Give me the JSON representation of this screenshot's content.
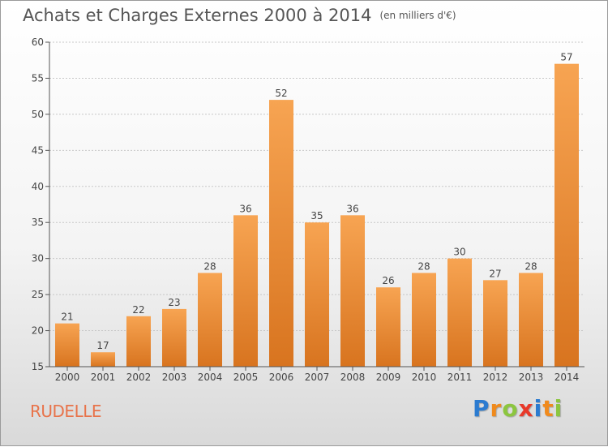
{
  "title": "Achats et Charges Externes 2000 à 2014",
  "subtitle": "(en milliers d'€)",
  "commune": "RUDELLE",
  "logo": {
    "text": "Proxiti",
    "letters": [
      {
        "ch": "P",
        "color": "#2b7bd0"
      },
      {
        "ch": "r",
        "color": "#f08a1c"
      },
      {
        "ch": "o",
        "color": "#8cc63f"
      },
      {
        "ch": "x",
        "color": "#e8392a"
      },
      {
        "ch": "i",
        "color": "#2b7bd0"
      },
      {
        "ch": "t",
        "color": "#f08a1c"
      },
      {
        "ch": "i",
        "color": "#8cc63f"
      }
    ]
  },
  "colors": {
    "bar_top": "#f7a452",
    "bar_bottom": "#d8741f",
    "grid": "#c8c8c8",
    "commune": "#e8734a"
  },
  "chart_data": {
    "type": "bar",
    "title": "Achats et Charges Externes 2000 à 2014",
    "subtitle": "(en milliers d'€)",
    "categories": [
      "2000",
      "2001",
      "2002",
      "2003",
      "2004",
      "2005",
      "2006",
      "2007",
      "2008",
      "2009",
      "2010",
      "2011",
      "2012",
      "2013",
      "2014"
    ],
    "values": [
      21,
      17,
      22,
      23,
      28,
      36,
      52,
      35,
      36,
      26,
      28,
      30,
      27,
      28,
      57
    ],
    "ylim": [
      15,
      60
    ],
    "yticks": [
      15,
      20,
      25,
      30,
      35,
      40,
      45,
      50,
      55,
      60
    ],
    "grid": true,
    "data_labels": true
  }
}
